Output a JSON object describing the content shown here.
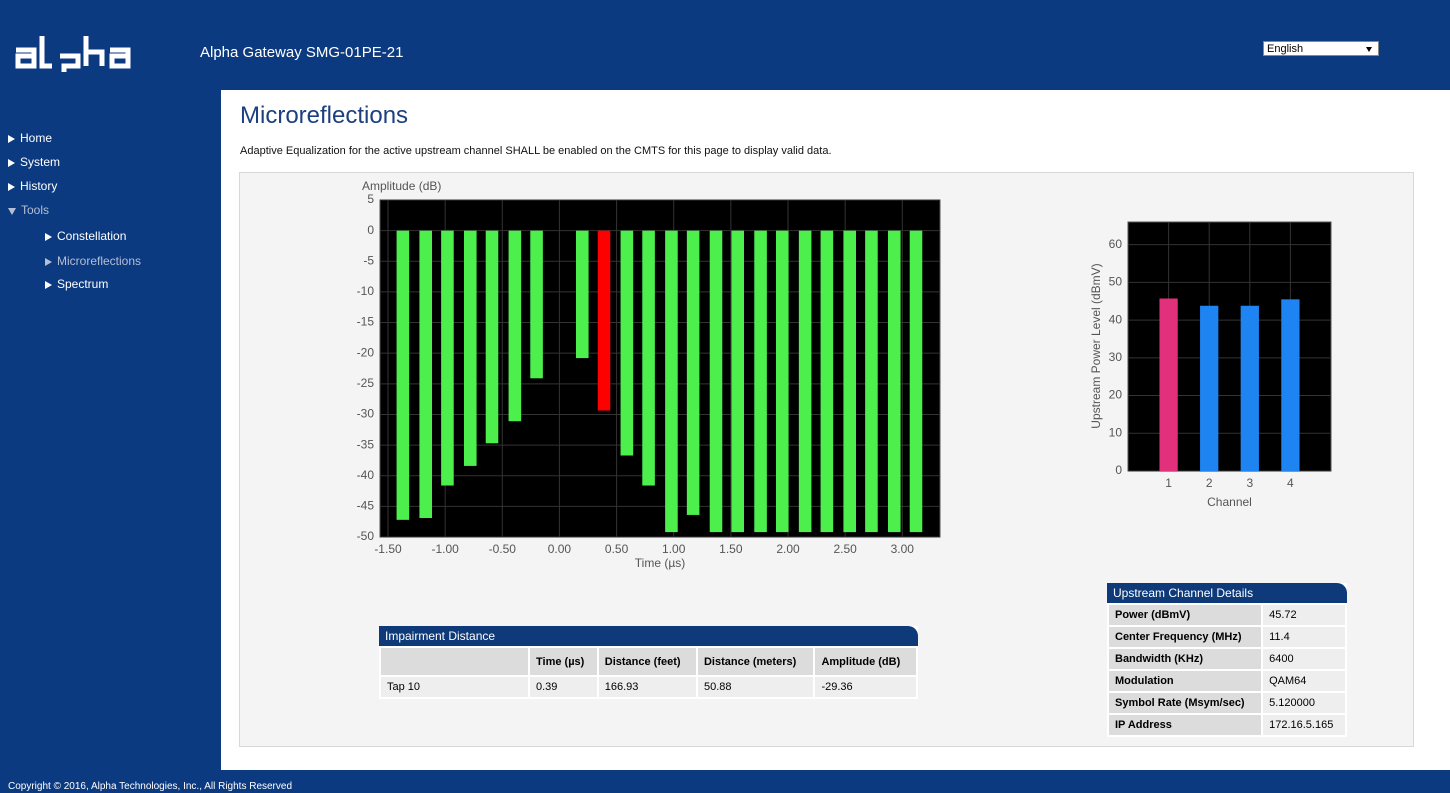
{
  "header": {
    "title": "Alpha Gateway SMG-01PE-21",
    "language": "English"
  },
  "nav": [
    {
      "label": "Home"
    },
    {
      "label": "System"
    },
    {
      "label": "History"
    },
    {
      "label": "Tools",
      "children": [
        {
          "label": "Constellation"
        },
        {
          "label": "Microreflections"
        },
        {
          "label": "Spectrum"
        }
      ]
    }
  ],
  "page": {
    "title": "Microreflections",
    "notice": "Adaptive Equalization for the active upstream channel SHALL be enabled on the CMTS for this page to display valid data."
  },
  "chart_data": [
    {
      "type": "bar",
      "y_label": "Amplitude (dB)",
      "x_label": "Time (µs)",
      "x": [
        -1.37,
        -1.17,
        -0.98,
        -0.78,
        -0.59,
        -0.39,
        -0.2,
        0.0,
        0.2,
        0.39,
        0.59,
        0.78,
        0.98,
        1.17,
        1.37,
        1.56,
        1.76,
        1.95,
        2.15,
        2.34,
        2.54,
        2.73,
        2.93,
        3.12
      ],
      "values": [
        -47.2,
        -46.9,
        -41.6,
        -38.4,
        -34.7,
        -31.1,
        -24.1,
        0,
        -20.8,
        -29.36,
        -36.7,
        -41.6,
        -49.2,
        -46.4,
        -49.2,
        -49.2,
        -49.2,
        -49.2,
        -49.2,
        -49.2,
        -49.2,
        -49.2,
        -49.2,
        -49.2
      ],
      "colors": [
        "#4def4d",
        "#4def4d",
        "#4def4d",
        "#4def4d",
        "#4def4d",
        "#4def4d",
        "#4def4d",
        "#4def4d",
        "#4def4d",
        "#ff0000",
        "#4def4d",
        "#4def4d",
        "#4def4d",
        "#4def4d",
        "#4def4d",
        "#4def4d",
        "#4def4d",
        "#4def4d",
        "#4def4d",
        "#4def4d",
        "#4def4d",
        "#4def4d",
        "#4def4d",
        "#4def4d"
      ],
      "xlim": [
        -1.57,
        3.33
      ],
      "ylim": [
        -50,
        5
      ],
      "xticks": [
        {
          "value": -1.5,
          "label": "-1.50"
        },
        {
          "value": -1.0,
          "label": "-1.00"
        },
        {
          "value": -0.5,
          "label": "-0.50"
        },
        {
          "value": 0,
          "label": "0.00"
        },
        {
          "value": 0.5,
          "label": "0.50"
        },
        {
          "value": 1.0,
          "label": "1.00"
        },
        {
          "value": 1.5,
          "label": "1.50"
        },
        {
          "value": 2.0,
          "label": "2.00"
        },
        {
          "value": 2.5,
          "label": "2.50"
        },
        {
          "value": 3.0,
          "label": "3.00"
        }
      ],
      "yticks": [
        -50,
        -45,
        -40,
        -35,
        -30,
        -25,
        -20,
        -15,
        -10,
        -5,
        0,
        5
      ],
      "grid": true
    },
    {
      "type": "bar",
      "y_label": "Upstream Power Level (dBmV)",
      "x_label": "Channel",
      "categories": [
        "1",
        "2",
        "3",
        "4"
      ],
      "values": [
        45.72,
        43.8,
        43.8,
        45.5
      ],
      "colors": [
        "#e2307c",
        "#1e84f2",
        "#1e84f2",
        "#1e84f2"
      ],
      "ylim": [
        0,
        66
      ],
      "yticks": [
        0,
        10,
        20,
        30,
        40,
        50,
        60
      ],
      "grid": true
    }
  ],
  "impairment": {
    "title": "Impairment Distance",
    "columns": [
      "Time (µs)",
      "Distance (feet)",
      "Distance (meters)",
      "Amplitude (dB)"
    ],
    "rows": [
      [
        "Tap 10",
        "0.39",
        "166.93",
        "50.88",
        "-29.36"
      ]
    ]
  },
  "upstream": {
    "title": "Upstream Channel Details",
    "rows": [
      [
        "Power (dBmV)",
        "45.72"
      ],
      [
        "Center Frequency (MHz)",
        "11.4"
      ],
      [
        "Bandwidth (KHz)",
        "6400"
      ],
      [
        "Modulation",
        "QAM64"
      ],
      [
        "Symbol Rate (Msym/sec)",
        "5.120000"
      ],
      [
        "IP Address",
        "172.16.5.165"
      ]
    ]
  },
  "footer": "Copyright © 2016, Alpha Technologies, Inc., All Rights Reserved"
}
